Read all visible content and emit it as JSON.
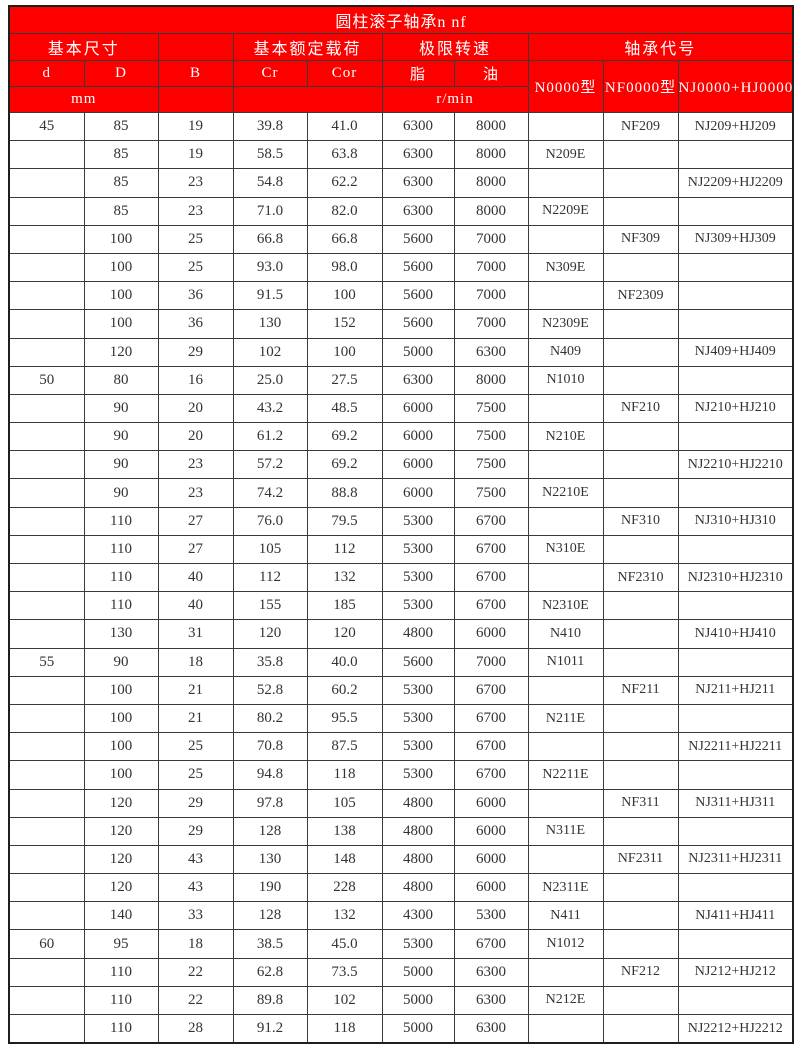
{
  "table": {
    "title": "圆柱滚子轴承n nf",
    "header": {
      "group_basic_size": "基本尺寸",
      "group_rated_load": "基本额定载荷",
      "group_limit_speed": "极限转速",
      "group_bearing_code": "轴承代号",
      "col_d": "d",
      "col_D": "D",
      "col_B": "B",
      "col_Cr": "Cr",
      "col_Cor": "Cor",
      "col_grease": "脂",
      "col_oil": "油",
      "col_type_n": "N0000型",
      "col_type_nf": "NF0000型",
      "col_type_njhj": "NJ0000+HJ0000型",
      "unit_mm": "mm",
      "unit_rpm": "r/min"
    },
    "rows": [
      [
        "45",
        "85",
        "19",
        "39.8",
        "41.0",
        "6300",
        "8000",
        "",
        "NF209",
        "NJ209+HJ209"
      ],
      [
        "",
        "85",
        "19",
        "58.5",
        "63.8",
        "6300",
        "8000",
        "N209E",
        "",
        ""
      ],
      [
        "",
        "85",
        "23",
        "54.8",
        "62.2",
        "6300",
        "8000",
        "",
        "",
        "NJ2209+HJ2209"
      ],
      [
        "",
        "85",
        "23",
        "71.0",
        "82.0",
        "6300",
        "8000",
        "N2209E",
        "",
        ""
      ],
      [
        "",
        "100",
        "25",
        "66.8",
        "66.8",
        "5600",
        "7000",
        "",
        "NF309",
        "NJ309+HJ309"
      ],
      [
        "",
        "100",
        "25",
        "93.0",
        "98.0",
        "5600",
        "7000",
        "N309E",
        "",
        ""
      ],
      [
        "",
        "100",
        "36",
        "91.5",
        "100",
        "5600",
        "7000",
        "",
        "NF2309",
        ""
      ],
      [
        "",
        "100",
        "36",
        "130",
        "152",
        "5600",
        "7000",
        "N2309E",
        "",
        ""
      ],
      [
        "",
        "120",
        "29",
        "102",
        "100",
        "5000",
        "6300",
        "N409",
        "",
        "NJ409+HJ409"
      ],
      [
        "50",
        "80",
        "16",
        "25.0",
        "27.5",
        "6300",
        "8000",
        "N1010",
        "",
        ""
      ],
      [
        "",
        "90",
        "20",
        "43.2",
        "48.5",
        "6000",
        "7500",
        "",
        "NF210",
        "NJ210+HJ210"
      ],
      [
        "",
        "90",
        "20",
        "61.2",
        "69.2",
        "6000",
        "7500",
        "N210E",
        "",
        ""
      ],
      [
        "",
        "90",
        "23",
        "57.2",
        "69.2",
        "6000",
        "7500",
        "",
        "",
        "NJ2210+HJ2210"
      ],
      [
        "",
        "90",
        "23",
        "74.2",
        "88.8",
        "6000",
        "7500",
        "N2210E",
        "",
        ""
      ],
      [
        "",
        "110",
        "27",
        "76.0",
        "79.5",
        "5300",
        "6700",
        "",
        "NF310",
        "NJ310+HJ310"
      ],
      [
        "",
        "110",
        "27",
        "105",
        "112",
        "5300",
        "6700",
        "N310E",
        "",
        ""
      ],
      [
        "",
        "110",
        "40",
        "112",
        "132",
        "5300",
        "6700",
        "",
        "NF2310",
        "NJ2310+HJ2310"
      ],
      [
        "",
        "110",
        "40",
        "155",
        "185",
        "5300",
        "6700",
        "N2310E",
        "",
        ""
      ],
      [
        "",
        "130",
        "31",
        "120",
        "120",
        "4800",
        "6000",
        "N410",
        "",
        "NJ410+HJ410"
      ],
      [
        "55",
        "90",
        "18",
        "35.8",
        "40.0",
        "5600",
        "7000",
        "N1011",
        "",
        ""
      ],
      [
        "",
        "100",
        "21",
        "52.8",
        "60.2",
        "5300",
        "6700",
        "",
        "NF211",
        "NJ211+HJ211"
      ],
      [
        "",
        "100",
        "21",
        "80.2",
        "95.5",
        "5300",
        "6700",
        "N211E",
        "",
        ""
      ],
      [
        "",
        "100",
        "25",
        "70.8",
        "87.5",
        "5300",
        "6700",
        "",
        "",
        "NJ2211+HJ2211"
      ],
      [
        "",
        "100",
        "25",
        "94.8",
        "118",
        "5300",
        "6700",
        "N2211E",
        "",
        ""
      ],
      [
        "",
        "120",
        "29",
        "97.8",
        "105",
        "4800",
        "6000",
        "",
        "NF311",
        "NJ311+HJ311"
      ],
      [
        "",
        "120",
        "29",
        "128",
        "138",
        "4800",
        "6000",
        "N311E",
        "",
        ""
      ],
      [
        "",
        "120",
        "43",
        "130",
        "148",
        "4800",
        "6000",
        "",
        "NF2311",
        "NJ2311+HJ2311"
      ],
      [
        "",
        "120",
        "43",
        "190",
        "228",
        "4800",
        "6000",
        "N2311E",
        "",
        ""
      ],
      [
        "",
        "140",
        "33",
        "128",
        "132",
        "4300",
        "5300",
        "N411",
        "",
        "NJ411+HJ411"
      ],
      [
        "60",
        "95",
        "18",
        "38.5",
        "45.0",
        "5300",
        "6700",
        "N1012",
        "",
        ""
      ],
      [
        "",
        "110",
        "22",
        "62.8",
        "73.5",
        "5000",
        "6300",
        "",
        "NF212",
        "NJ212+HJ212"
      ],
      [
        "",
        "110",
        "22",
        "89.8",
        "102",
        "5000",
        "6300",
        "N212E",
        "",
        ""
      ],
      [
        "",
        "110",
        "28",
        "91.2",
        "118",
        "5000",
        "6300",
        "",
        "",
        "NJ2212+HJ2212"
      ]
    ],
    "colors": {
      "header_background": "#fc0000",
      "header_text": "#ffffff",
      "body_text": "#333333",
      "border": "#3a3a3a"
    }
  }
}
